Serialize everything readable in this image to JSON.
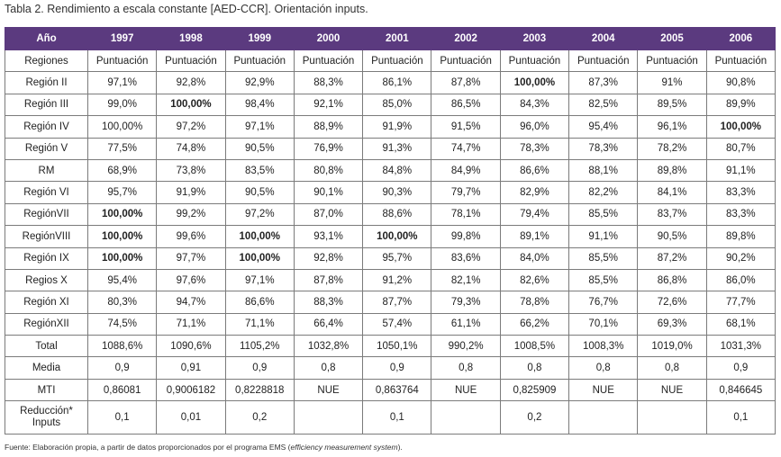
{
  "title": "Tabla 2. Rendimiento a escala constante [AED-CCR]. Orientación inputs.",
  "header": [
    "Año",
    "1997",
    "1998",
    "1999",
    "2000",
    "2001",
    "2002",
    "2003",
    "2004",
    "2005",
    "2006"
  ],
  "rows": [
    {
      "label": "Regiones",
      "cells": [
        "Puntuación",
        "Puntuación",
        "Puntuación",
        "Puntuación",
        "Puntuación",
        "Puntuación",
        "Puntuación",
        "Puntuación",
        "Puntuación",
        "Puntuación"
      ],
      "bold": []
    },
    {
      "label": "Región II",
      "cells": [
        "97,1%",
        "92,8%",
        "92,9%",
        "88,3%",
        "86,1%",
        "87,8%",
        "100,00%",
        "87,3%",
        "91%",
        "90,8%"
      ],
      "bold": [
        6
      ]
    },
    {
      "label": "Región III",
      "cells": [
        "99,0%",
        "100,00%",
        "98,4%",
        "92,1%",
        "85,0%",
        "86,5%",
        "84,3%",
        "82,5%",
        "89,5%",
        "89,9%"
      ],
      "bold": [
        1
      ]
    },
    {
      "label": "Región IV",
      "cells": [
        "100,00%",
        "97,2%",
        "97,1%",
        "88,9%",
        "91,9%",
        "91,5%",
        "96,0%",
        "95,4%",
        "96,1%",
        "100,00%"
      ],
      "bold": [
        9
      ]
    },
    {
      "label": "Región V",
      "cells": [
        "77,5%",
        "74,8%",
        "90,5%",
        "76,9%",
        "91,3%",
        "74,7%",
        "78,3%",
        "78,3%",
        "78,2%",
        "80,7%"
      ],
      "bold": []
    },
    {
      "label": "RM",
      "cells": [
        "68,9%",
        "73,8%",
        "83,5%",
        "80,8%",
        "84,8%",
        "84,9%",
        "86,6%",
        "88,1%",
        "89,8%",
        "91,1%"
      ],
      "bold": []
    },
    {
      "label": "Región VI",
      "cells": [
        "95,7%",
        "91,9%",
        "90,5%",
        "90,1%",
        "90,3%",
        "79,7%",
        "82,9%",
        "82,2%",
        "84,1%",
        "83,3%"
      ],
      "bold": []
    },
    {
      "label": "RegiónVII",
      "cells": [
        "100,00%",
        "99,2%",
        "97,2%",
        "87,0%",
        "88,6%",
        "78,1%",
        "79,4%",
        "85,5%",
        "83,7%",
        "83,3%"
      ],
      "bold": [
        0
      ]
    },
    {
      "label": "RegiónVIII",
      "cells": [
        "100,00%",
        "99,6%",
        "100,00%",
        "93,1%",
        "100,00%",
        "99,8%",
        "89,1%",
        "91,1%",
        "90,5%",
        "89,8%"
      ],
      "bold": [
        0,
        2,
        4
      ]
    },
    {
      "label": "Región IX",
      "cells": [
        "100,00%",
        "97,7%",
        "100,00%",
        "92,8%",
        "95,7%",
        "83,6%",
        "84,0%",
        "85,5%",
        "87,2%",
        "90,2%"
      ],
      "bold": [
        0,
        2
      ]
    },
    {
      "label": "Regios X",
      "cells": [
        "95,4%",
        "97,6%",
        "97,1%",
        "87,8%",
        "91,2%",
        "82,1%",
        "82,6%",
        "85,5%",
        "86,8%",
        "86,0%"
      ],
      "bold": []
    },
    {
      "label": "Región XI",
      "cells": [
        "80,3%",
        "94,7%",
        "86,6%",
        "88,3%",
        "87,7%",
        "79,3%",
        "78,8%",
        "76,7%",
        "72,6%",
        "77,7%"
      ],
      "bold": []
    },
    {
      "label": "RegiónXII",
      "cells": [
        "74,5%",
        "71,1%",
        "71,1%",
        "66,4%",
        "57,4%",
        "61,1%",
        "66,2%",
        "70,1%",
        "69,3%",
        "68,1%"
      ],
      "bold": []
    },
    {
      "label": "Total",
      "cells": [
        "1088,6%",
        "1090,6%",
        "1105,2%",
        "1032,8%",
        "1050,1%",
        "990,2%",
        "1008,5%",
        "1008,3%",
        "1019,0%",
        "1031,3%"
      ],
      "bold": []
    },
    {
      "label": "Media",
      "cells": [
        "0,9",
        "0,91",
        "0,9",
        "0,8",
        "0,9",
        "0,8",
        "0,8",
        "0,8",
        "0,8",
        "0,9"
      ],
      "bold": []
    },
    {
      "label": "MTI",
      "cells": [
        "0,86081",
        "0,9006182",
        "0,8228818",
        "NUE",
        "0,863764",
        "NUE",
        "0,825909",
        "NUE",
        "NUE",
        "0,846645"
      ],
      "bold": []
    }
  ],
  "last_row": {
    "label_line1": "Reducción*",
    "label_line2": "Inputs",
    "cells": [
      "0,1",
      "0,01",
      "0,2",
      "",
      "0,1",
      "",
      "0,2",
      "",
      "",
      "0,1"
    ]
  },
  "footnote_prefix": "Fuente: Elaboración propia, a partir de datos proporcionados por el programa EMS (",
  "footnote_italic": "efficiency measurement system",
  "footnote_suffix": ")."
}
